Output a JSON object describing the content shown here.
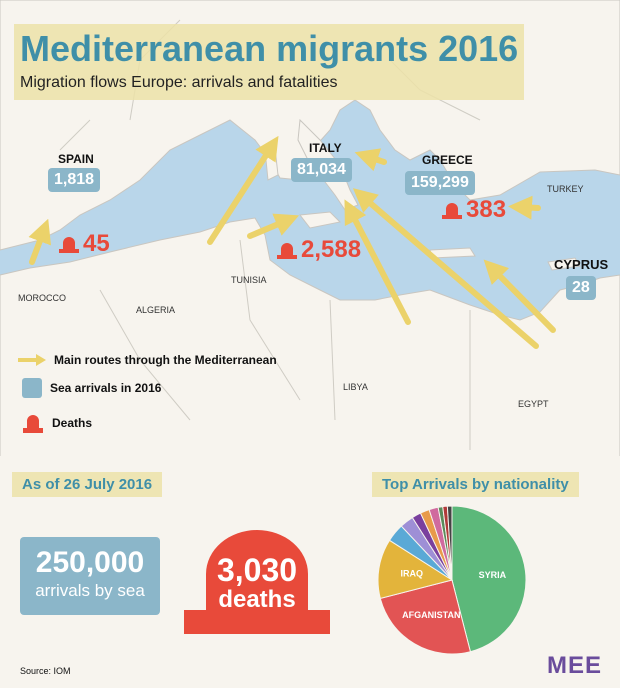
{
  "header": {
    "title": "Mediterranean migrants 2016",
    "subtitle": "Migration flows Europe: arrivals and fatalities"
  },
  "map": {
    "countries": {
      "spain": "SPAIN",
      "italy": "ITALY",
      "greece": "GREECE",
      "turkey": "TURKEY",
      "cyprus": "CYPRUS",
      "morocco": "MOROCCO",
      "algeria": "ALGERIA",
      "tunisia": "TUNISIA",
      "libya": "LIBYA",
      "egypt": "EGYPT"
    },
    "arrivals": {
      "spain": "1,818",
      "italy": "81,034",
      "greece": "159,299",
      "cyprus": "28"
    },
    "deaths": {
      "spain": "45",
      "central": "2,588",
      "greece": "383"
    }
  },
  "legend": {
    "routes": "Main routes through the Mediterranean",
    "arrivals": "Sea arrivals in 2016",
    "deaths": "Deaths"
  },
  "summary": {
    "date_label": "As of 26 July 2016",
    "arrivals_number": "250,000",
    "arrivals_label": "arrivals by sea",
    "deaths_number": "3,030",
    "deaths_label": "deaths"
  },
  "chart_data": {
    "type": "pie",
    "title": "Top Arrivals by nationality",
    "categories": [
      "SYRIA",
      "AFGANISTAN",
      "IRAQ",
      "",
      "",
      "",
      "",
      "",
      "",
      "",
      ""
    ],
    "values": [
      46,
      25,
      13,
      4,
      3,
      2,
      2,
      2,
      1,
      1,
      1
    ],
    "colors": [
      "#5cb87a",
      "#e25454",
      "#e3b43b",
      "#5aa9d6",
      "#9e8fd6",
      "#7a3f9e",
      "#e89a4a",
      "#d06a9e",
      "#5a8a5a",
      "#b03a3a",
      "#444444"
    ]
  },
  "footer": {
    "source": "Source: IOM",
    "logo": "MEE"
  },
  "colors": {
    "accent": "#3f8fa8",
    "arrival_badge": "#8bb6c9",
    "death": "#e84a3a",
    "route_arrow": "#ebd26a"
  }
}
